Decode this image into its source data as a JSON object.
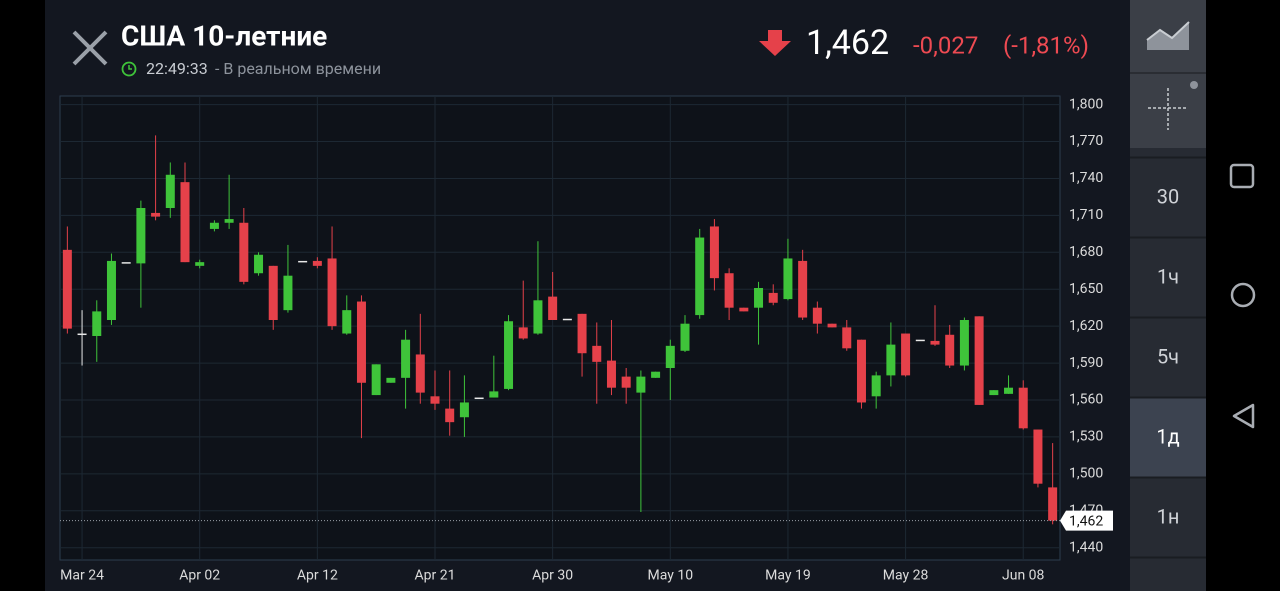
{
  "header": {
    "title": "США 10-летние",
    "time": "22:49:33",
    "status": "- В реальном времени",
    "price": "1,462",
    "change": "-0,027",
    "change_pct": "(-1,81%)"
  },
  "sidebar": {
    "timeframes": [
      "30",
      "1ч",
      "5ч",
      "1д",
      "1н"
    ],
    "active_timeframe": 3
  },
  "chart_data": {
    "type": "candlestick",
    "categories": [
      null,
      "Mar 24",
      null,
      null,
      null,
      null,
      null,
      null,
      null,
      "Apr 02",
      null,
      null,
      null,
      null,
      null,
      null,
      null,
      "Apr 12",
      null,
      null,
      null,
      null,
      null,
      null,
      null,
      "Apr 21",
      null,
      null,
      null,
      null,
      null,
      null,
      null,
      "Apr 30",
      null,
      null,
      null,
      null,
      null,
      null,
      null,
      "May 10",
      null,
      null,
      null,
      null,
      null,
      null,
      null,
      "May 19",
      null,
      null,
      null,
      null,
      null,
      null,
      null,
      "May 28",
      null,
      null,
      null,
      null,
      null,
      null,
      null,
      "Jun 08",
      null,
      null
    ],
    "open": [
      1.682,
      1.614,
      1.612,
      1.625,
      1.672,
      1.671,
      1.712,
      1.716,
      1.737,
      1.669,
      1.699,
      1.704,
      1.704,
      1.663,
      1.669,
      1.633,
      1.673,
      1.673,
      1.675,
      1.614,
      1.64,
      1.564,
      1.574,
      1.578,
      1.597,
      1.563,
      1.553,
      1.546,
      1.562,
      1.562,
      1.569,
      1.619,
      1.614,
      1.644,
      1.626,
      1.63,
      1.604,
      1.592,
      1.579,
      1.566,
      1.578,
      1.586,
      1.6,
      1.629,
      1.701,
      1.663,
      1.635,
      1.635,
      1.647,
      1.642,
      1.673,
      1.635,
      1.622,
      1.619,
      1.609,
      1.563,
      1.58,
      1.614,
      1.609,
      1.608,
      1.613,
      1.588,
      1.628,
      1.564,
      1.565,
      1.57,
      1.536,
      1.489
    ],
    "high": [
      1.701,
      1.633,
      1.641,
      1.679,
      1.672,
      1.722,
      1.775,
      1.753,
      1.753,
      1.674,
      1.706,
      1.743,
      1.716,
      1.68,
      1.669,
      1.686,
      1.673,
      1.676,
      1.701,
      1.645,
      1.645,
      1.589,
      1.578,
      1.617,
      1.63,
      1.584,
      1.584,
      1.58,
      1.562,
      1.596,
      1.629,
      1.657,
      1.689,
      1.664,
      1.626,
      1.63,
      1.623,
      1.625,
      1.586,
      1.584,
      1.583,
      1.609,
      1.629,
      1.699,
      1.707,
      1.667,
      1.635,
      1.656,
      1.654,
      1.691,
      1.682,
      1.64,
      1.622,
      1.625,
      1.609,
      1.583,
      1.623,
      1.614,
      1.609,
      1.637,
      1.621,
      1.627,
      1.628,
      1.568,
      1.58,
      1.576,
      1.536,
      1.525
    ],
    "low": [
      1.614,
      1.588,
      1.591,
      1.621,
      1.672,
      1.635,
      1.706,
      1.708,
      1.672,
      1.667,
      1.697,
      1.699,
      1.654,
      1.661,
      1.617,
      1.631,
      1.673,
      1.667,
      1.617,
      1.613,
      1.529,
      1.564,
      1.574,
      1.553,
      1.557,
      1.552,
      1.531,
      1.53,
      1.562,
      1.562,
      1.568,
      1.609,
      1.613,
      1.625,
      1.626,
      1.579,
      1.557,
      1.564,
      1.557,
      1.469,
      1.578,
      1.56,
      1.599,
      1.626,
      1.649,
      1.625,
      1.632,
      1.605,
      1.637,
      1.641,
      1.625,
      1.614,
      1.619,
      1.6,
      1.553,
      1.553,
      1.571,
      1.579,
      1.609,
      1.604,
      1.586,
      1.584,
      1.556,
      1.564,
      1.565,
      1.536,
      1.489,
      1.459
    ],
    "close": [
      1.618,
      1.614,
      1.632,
      1.673,
      1.672,
      1.716,
      1.709,
      1.743,
      1.672,
      1.672,
      1.704,
      1.707,
      1.656,
      1.678,
      1.625,
      1.661,
      1.673,
      1.669,
      1.62,
      1.633,
      1.574,
      1.589,
      1.578,
      1.609,
      1.566,
      1.557,
      1.542,
      1.558,
      1.562,
      1.567,
      1.624,
      1.61,
      1.641,
      1.625,
      1.626,
      1.598,
      1.591,
      1.57,
      1.57,
      1.579,
      1.583,
      1.604,
      1.622,
      1.692,
      1.659,
      1.635,
      1.632,
      1.651,
      1.639,
      1.675,
      1.627,
      1.622,
      1.619,
      1.602,
      1.558,
      1.58,
      1.605,
      1.58,
      1.609,
      1.605,
      1.588,
      1.625,
      1.556,
      1.568,
      1.57,
      1.537,
      1.492,
      1.462
    ],
    "up_color": "#3fc43a",
    "down_color": "#e5414a",
    "flat_color": "#e8e8e8",
    "ylim": [
      1.43,
      1.807
    ],
    "yticks": [
      {
        "value": 1.44,
        "label": "1,440"
      },
      {
        "value": 1.47,
        "label": "1,470"
      },
      {
        "value": 1.5,
        "label": "1,500"
      },
      {
        "value": 1.53,
        "label": "1,530"
      },
      {
        "value": 1.56,
        "label": "1,560"
      },
      {
        "value": 1.59,
        "label": "1,590"
      },
      {
        "value": 1.62,
        "label": "1,620"
      },
      {
        "value": 1.65,
        "label": "1,650"
      },
      {
        "value": 1.68,
        "label": "1,680"
      },
      {
        "value": 1.71,
        "label": "1,710"
      },
      {
        "value": 1.74,
        "label": "1,740"
      },
      {
        "value": 1.77,
        "label": "1,770"
      },
      {
        "value": 1.8,
        "label": "1,800"
      }
    ],
    "last_price": {
      "value": 1.462,
      "label": "1,462"
    },
    "grid": true
  }
}
